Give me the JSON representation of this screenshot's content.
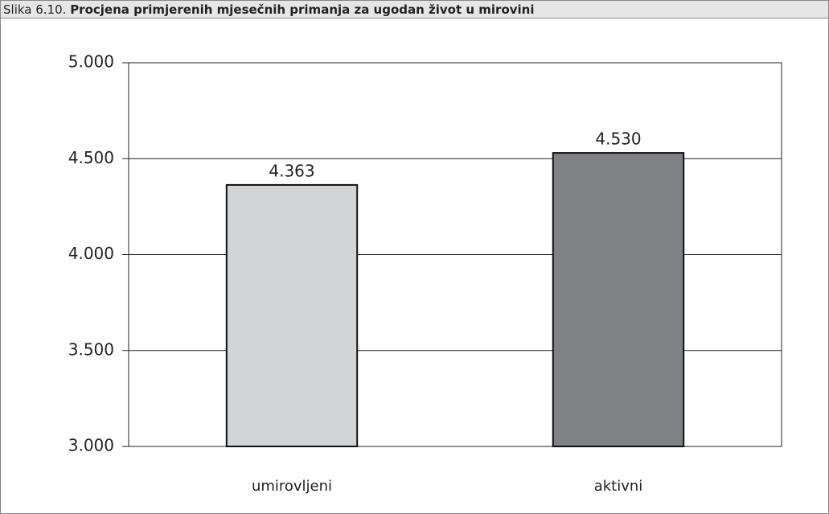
{
  "chart_data": {
    "type": "bar",
    "figure_label": "Slika 6.10.",
    "title": "Procjena primjerenih mjesečnih primanja za ugodan život u mirovini",
    "categories": [
      "umirovljeni",
      "aktivni"
    ],
    "values": [
      4363,
      4530
    ],
    "value_labels": [
      "4.363",
      "4.530"
    ],
    "colors": [
      "#d3d4d6",
      "#808184"
    ],
    "ylim": [
      3000,
      5000
    ],
    "yticks": [
      {
        "value": 3000,
        "label": "3.000"
      },
      {
        "value": 3500,
        "label": "3.500"
      },
      {
        "value": 4000,
        "label": "4.000"
      },
      {
        "value": 4500,
        "label": "4.500"
      },
      {
        "value": 5000,
        "label": "5.000"
      }
    ],
    "grid": true
  }
}
